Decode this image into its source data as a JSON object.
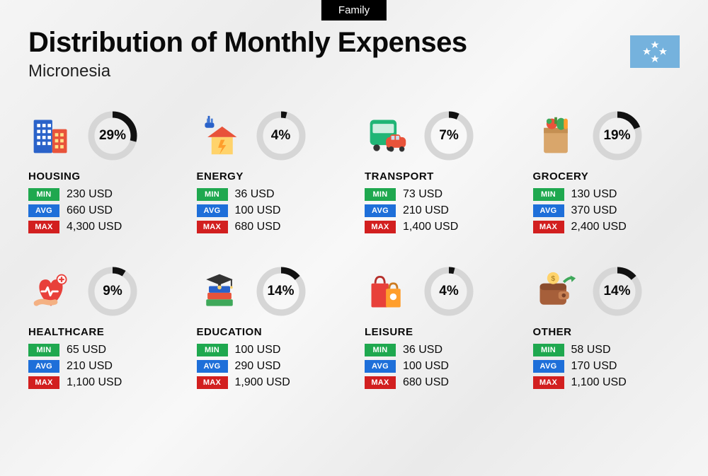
{
  "badge_label": "Family",
  "title": "Distribution of Monthly Expenses",
  "subtitle": "Micronesia",
  "flag": {
    "bg": "#75b2dd",
    "star": "#ffffff"
  },
  "ring_style": {
    "radius": 30,
    "stroke_width": 9,
    "track_color": "#d6d6d6",
    "progress_color": "#111111",
    "label_fontsize": 19
  },
  "badges": {
    "min": {
      "label": "MIN",
      "bg": "#1fa84f"
    },
    "avg": {
      "label": "AVG",
      "bg": "#1e6fd9"
    },
    "max": {
      "label": "MAX",
      "bg": "#d21f1f"
    }
  },
  "categories": [
    {
      "key": "housing",
      "name": "HOUSING",
      "percent": 29,
      "percent_label": "29%",
      "min": "230 USD",
      "avg": "660 USD",
      "max": "4,300 USD",
      "icon": "buildings"
    },
    {
      "key": "energy",
      "name": "ENERGY",
      "percent": 4,
      "percent_label": "4%",
      "min": "36 USD",
      "avg": "100 USD",
      "max": "680 USD",
      "icon": "energy-house"
    },
    {
      "key": "transport",
      "name": "TRANSPORT",
      "percent": 7,
      "percent_label": "7%",
      "min": "73 USD",
      "avg": "210 USD",
      "max": "1,400 USD",
      "icon": "bus-car"
    },
    {
      "key": "grocery",
      "name": "GROCERY",
      "percent": 19,
      "percent_label": "19%",
      "min": "130 USD",
      "avg": "370 USD",
      "max": "2,400 USD",
      "icon": "grocery-bag"
    },
    {
      "key": "healthcare",
      "name": "HEALTHCARE",
      "percent": 9,
      "percent_label": "9%",
      "min": "65 USD",
      "avg": "210 USD",
      "max": "1,100 USD",
      "icon": "healthcare-heart"
    },
    {
      "key": "education",
      "name": "EDUCATION",
      "percent": 14,
      "percent_label": "14%",
      "min": "100 USD",
      "avg": "290 USD",
      "max": "1,900 USD",
      "icon": "grad-books"
    },
    {
      "key": "leisure",
      "name": "LEISURE",
      "percent": 4,
      "percent_label": "4%",
      "min": "36 USD",
      "avg": "100 USD",
      "max": "680 USD",
      "icon": "shopping-bags"
    },
    {
      "key": "other",
      "name": "OTHER",
      "percent": 14,
      "percent_label": "14%",
      "min": "58 USD",
      "avg": "170 USD",
      "max": "1,100 USD",
      "icon": "wallet-arrow"
    }
  ]
}
